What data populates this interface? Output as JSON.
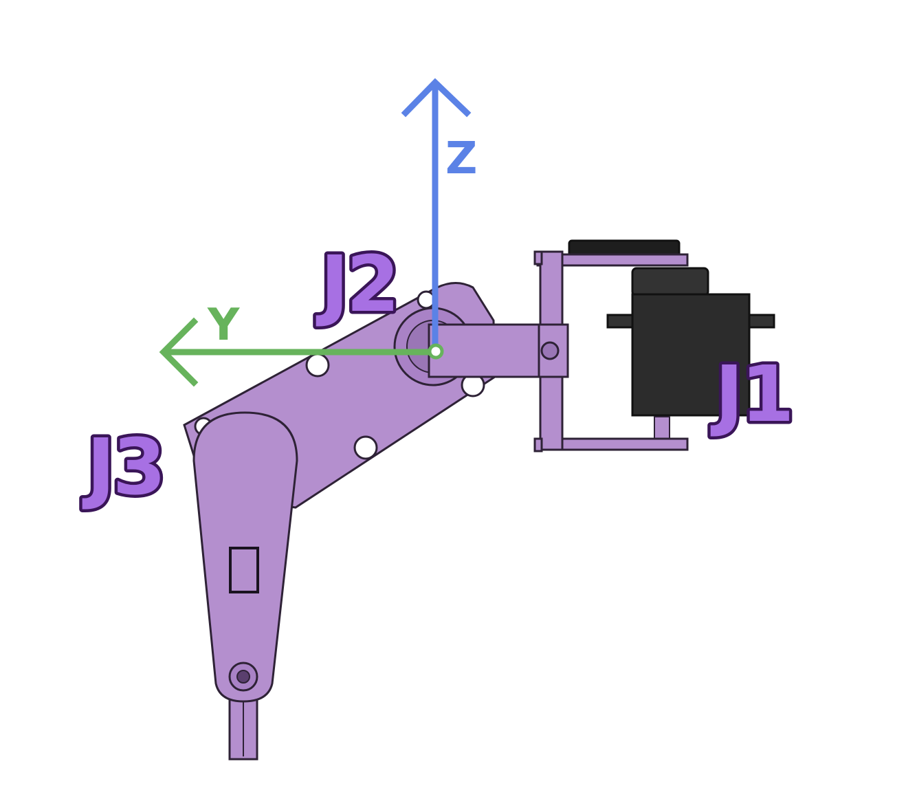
{
  "axes": {
    "z": {
      "label": "Z",
      "color": "#5b82e6"
    },
    "y": {
      "label": "Y",
      "color": "#67b35c"
    }
  },
  "joints": [
    {
      "id": "j1",
      "label": "J1"
    },
    {
      "id": "j2",
      "label": "J2"
    },
    {
      "id": "j3",
      "label": "J3"
    }
  ],
  "colors": {
    "part": "#b48fce",
    "part_light": "#c4a4da",
    "part_dark": "#9a76b6",
    "outline": "#2e2236",
    "servo": "#2c2c2c",
    "joint_label_fill": "#a770e3",
    "joint_label_stroke": "#3a1558"
  }
}
